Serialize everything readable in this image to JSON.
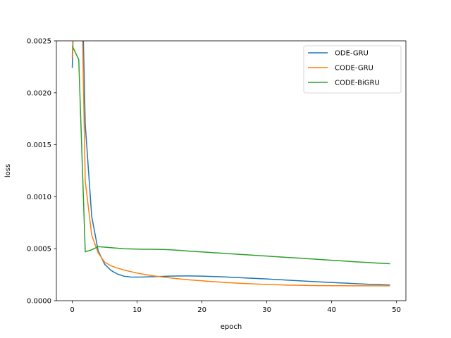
{
  "chart_data": {
    "type": "line",
    "title": "",
    "xlabel": "epoch",
    "ylabel": "loss",
    "xlim": [
      -2.45,
      51.45
    ],
    "ylim": [
      0,
      0.0025
    ],
    "xticks": [
      0,
      10,
      20,
      30,
      40,
      50
    ],
    "xtick_labels": [
      "0",
      "10",
      "20",
      "30",
      "40",
      "50"
    ],
    "yticks": [
      0,
      0.0005,
      0.001,
      0.0015,
      0.002,
      0.0025
    ],
    "ytick_labels": [
      "0.0000",
      "0.0005",
      "0.0010",
      "0.0015",
      "0.0020",
      "0.0025"
    ],
    "grid": false,
    "legend_position": "top-right",
    "x": [
      0,
      1,
      2,
      3,
      4,
      5,
      6,
      7,
      8,
      9,
      10,
      11,
      12,
      13,
      14,
      15,
      16,
      17,
      18,
      19,
      20,
      21,
      22,
      23,
      24,
      25,
      26,
      27,
      28,
      29,
      30,
      31,
      32,
      33,
      34,
      35,
      36,
      37,
      38,
      39,
      40,
      41,
      42,
      43,
      44,
      45,
      46,
      47,
      48,
      49
    ],
    "series": [
      {
        "name": "ODE-GRU",
        "color": "#1f77b4",
        "values": [
          0.00224,
          0.0045,
          0.0017,
          0.00081,
          0.00048,
          0.00035,
          0.00029,
          0.000255,
          0.000235,
          0.000228,
          0.000227,
          0.000228,
          0.00023,
          0.000232,
          0.000234,
          0.000236,
          0.000237,
          0.000238,
          0.000238,
          0.000237,
          0.000236,
          0.000234,
          0.000232,
          0.00023,
          0.000227,
          0.000224,
          0.000221,
          0.000218,
          0.000215,
          0.000212,
          0.000209,
          0.000205,
          0.000202,
          0.000198,
          0.000195,
          0.000191,
          0.000188,
          0.000185,
          0.000181,
          0.000178,
          0.000175,
          0.000172,
          0.000169,
          0.000166,
          0.000163,
          0.00016,
          0.000157,
          0.000155,
          0.000152,
          0.00015
        ]
      },
      {
        "name": "CODE-GRU",
        "color": "#ff7f0e",
        "values": [
          0.00234,
          0.0045,
          0.00115,
          0.00063,
          0.00046,
          0.00037,
          0.000335,
          0.000313,
          0.000295,
          0.00028,
          0.000266,
          0.000254,
          0.000244,
          0.000235,
          0.000227,
          0.00022,
          0.000213,
          0.000207,
          0.000201,
          0.000196,
          0.000191,
          0.000186,
          0.000182,
          0.000178,
          0.000174,
          0.00017,
          0.000167,
          0.000164,
          0.000161,
          0.000158,
          0.000156,
          0.000154,
          0.000152,
          0.00015,
          0.000149,
          0.000148,
          0.000147,
          0.000146,
          0.000145,
          0.000145,
          0.000144,
          0.000144,
          0.000144,
          0.000143,
          0.000143,
          0.000143,
          0.000143,
          0.000143,
          0.000143,
          0.000143
        ]
      },
      {
        "name": "CODE-BiGRU",
        "color": "#2ca02c",
        "values": [
          0.00245,
          0.00232,
          0.00047,
          0.00049,
          0.00052,
          0.000515,
          0.00051,
          0.000505,
          0.0005,
          0.000498,
          0.000496,
          0.000495,
          0.000495,
          0.000494,
          0.000493,
          0.00049,
          0.000486,
          0.000482,
          0.000477,
          0.000473,
          0.000469,
          0.000465,
          0.000461,
          0.000457,
          0.000453,
          0.000449,
          0.000445,
          0.000441,
          0.000437,
          0.000433,
          0.000429,
          0.000425,
          0.000421,
          0.000417,
          0.000413,
          0.000409,
          0.000405,
          0.000401,
          0.000397,
          0.000393,
          0.000389,
          0.000385,
          0.000381,
          0.000377,
          0.000373,
          0.000369,
          0.000366,
          0.000362,
          0.000359,
          0.000356
        ]
      }
    ]
  }
}
